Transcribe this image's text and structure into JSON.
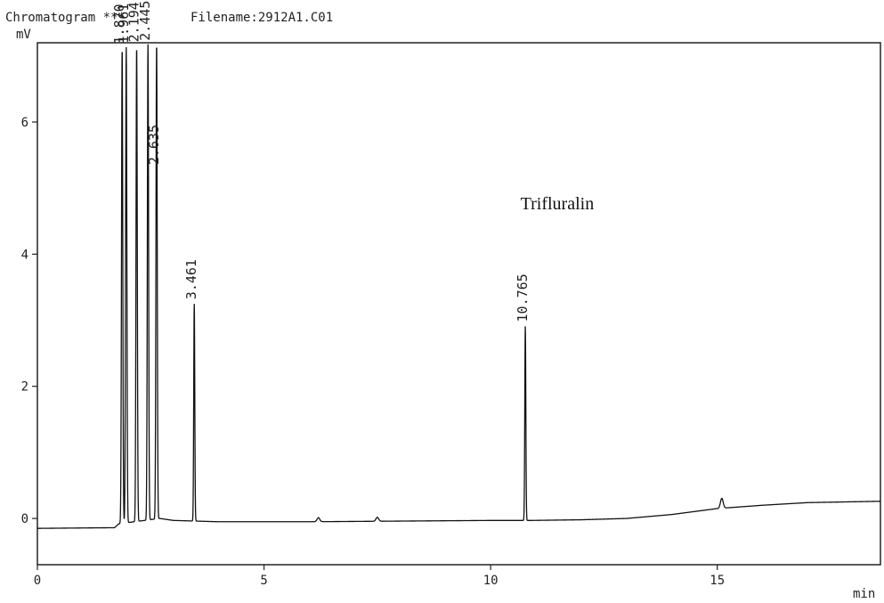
{
  "header": {
    "title": "Chromatogram ***",
    "filename": "Filename:2912A1.C01"
  },
  "chart_data": {
    "type": "line",
    "ylabel": "mV",
    "xlabel": "min",
    "xlim": [
      0,
      18.6
    ],
    "ylim": [
      -0.7,
      7.2
    ],
    "x_ticks": [
      0,
      5,
      10,
      15
    ],
    "y_ticks": [
      0,
      2,
      4,
      6
    ],
    "grid": false,
    "baseline": [
      [
        0,
        -0.15
      ],
      [
        1.7,
        -0.14
      ],
      [
        1.8,
        -0.08
      ],
      [
        2.7,
        0.0
      ],
      [
        3.0,
        -0.03
      ],
      [
        4.0,
        -0.05
      ],
      [
        6.0,
        -0.05
      ],
      [
        8.0,
        -0.04
      ],
      [
        10.0,
        -0.03
      ],
      [
        10.9,
        -0.03
      ],
      [
        12.0,
        -0.02
      ],
      [
        13.0,
        0.0
      ],
      [
        14.0,
        0.06
      ],
      [
        15.0,
        0.15
      ],
      [
        16.0,
        0.2
      ],
      [
        17.0,
        0.24
      ],
      [
        18.6,
        0.26
      ]
    ],
    "peaks": [
      {
        "rt_label": "1.870",
        "x": 1.87,
        "height": 7.2,
        "width": 0.03
      },
      {
        "rt_label": "1.961",
        "x": 1.96,
        "height": 7.2,
        "width": 0.03
      },
      {
        "rt_label": "2.194",
        "x": 2.19,
        "height": 7.2,
        "width": 0.03
      },
      {
        "rt_label": "2.445",
        "x": 2.44,
        "height": 7.2,
        "width": 0.03
      },
      {
        "rt_label": "2.635",
        "x": 2.63,
        "height": 7.2,
        "width": 0.03
      },
      {
        "rt_label": "3.461",
        "x": 3.461,
        "height": 3.3,
        "width": 0.025
      },
      {
        "rt_label": "10.765",
        "x": 10.765,
        "height": 2.95,
        "width": 0.025
      }
    ],
    "small_bumps": [
      {
        "x": 6.2,
        "height": 0.06
      },
      {
        "x": 7.5,
        "height": 0.06
      },
      {
        "x": 15.1,
        "height": 0.15
      }
    ],
    "annotations": [
      {
        "text": "Trifluralin",
        "x": 10.5,
        "y": 4.6
      }
    ]
  }
}
